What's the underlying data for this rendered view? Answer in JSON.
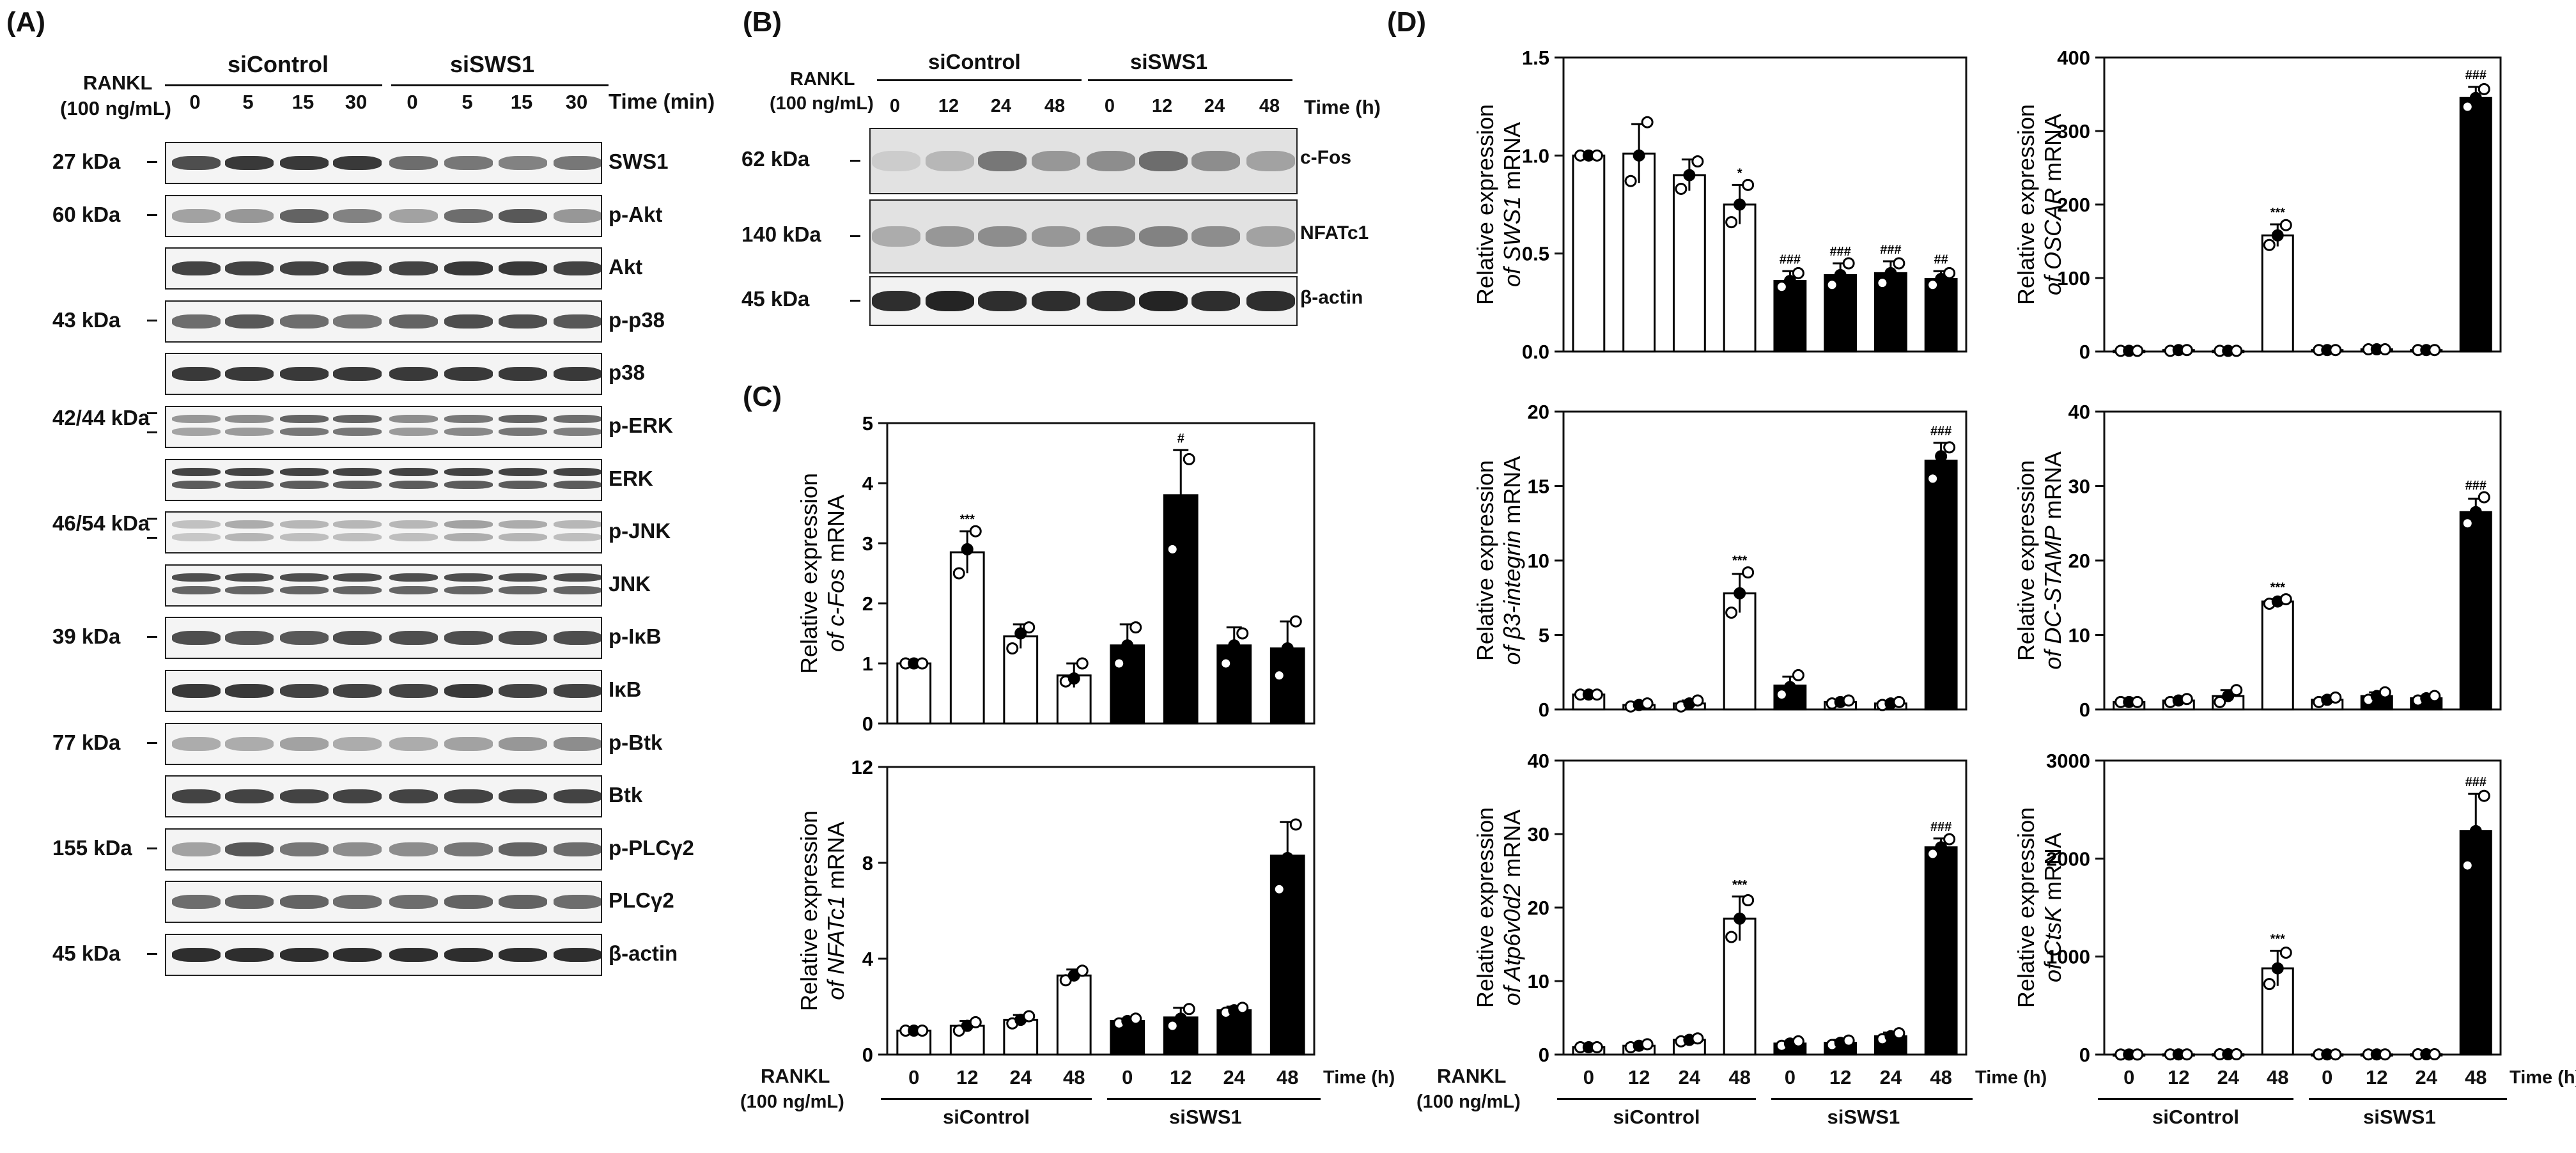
{
  "panel_A": {
    "letter": "(A)",
    "rankl_label_1": "RANKL",
    "rankl_label_2": "(100 ng/mL)",
    "groups": [
      "siControl",
      "siSWS1"
    ],
    "time_label": "Time (min)",
    "times": [
      "0",
      "5",
      "15",
      "30",
      "0",
      "5",
      "15",
      "30"
    ],
    "blots": [
      {
        "label": "SWS1",
        "kda": "27 kDa",
        "intensity": [
          0.75,
          0.85,
          0.85,
          0.85,
          0.6,
          0.55,
          0.5,
          0.55
        ],
        "double": false
      },
      {
        "label": "p-Akt",
        "kda": "60 kDa",
        "intensity": [
          0.35,
          0.4,
          0.65,
          0.5,
          0.35,
          0.6,
          0.7,
          0.4
        ],
        "double": false
      },
      {
        "label": "Akt",
        "kda": "",
        "intensity": [
          0.8,
          0.8,
          0.8,
          0.8,
          0.8,
          0.85,
          0.85,
          0.8
        ],
        "double": false
      },
      {
        "label": "p-p38",
        "kda": "43 kDa",
        "intensity": [
          0.6,
          0.7,
          0.6,
          0.55,
          0.65,
          0.75,
          0.75,
          0.7
        ],
        "double": false
      },
      {
        "label": "p38",
        "kda": "",
        "intensity": [
          0.85,
          0.85,
          0.85,
          0.85,
          0.85,
          0.85,
          0.85,
          0.85
        ],
        "double": false
      },
      {
        "label": "p-ERK",
        "kda": "42/44 kDa",
        "intensity": [
          0.4,
          0.45,
          0.65,
          0.65,
          0.45,
          0.55,
          0.65,
          0.6
        ],
        "double": true
      },
      {
        "label": "ERK",
        "kda": "",
        "intensity": [
          0.8,
          0.8,
          0.8,
          0.8,
          0.8,
          0.8,
          0.8,
          0.8
        ],
        "double": true
      },
      {
        "label": "p-JNK",
        "kda": "46/54 kDa",
        "intensity": [
          0.2,
          0.3,
          0.25,
          0.25,
          0.25,
          0.35,
          0.3,
          0.25
        ],
        "double": true
      },
      {
        "label": "JNK",
        "kda": "",
        "intensity": [
          0.75,
          0.75,
          0.75,
          0.75,
          0.75,
          0.75,
          0.75,
          0.75
        ],
        "double": true
      },
      {
        "label": "p-IκB",
        "kda": "39 kDa",
        "intensity": [
          0.75,
          0.7,
          0.7,
          0.75,
          0.75,
          0.75,
          0.75,
          0.75
        ],
        "double": false
      },
      {
        "label": "IκB",
        "kda": "",
        "intensity": [
          0.85,
          0.85,
          0.8,
          0.8,
          0.8,
          0.85,
          0.8,
          0.8
        ],
        "double": false
      },
      {
        "label": "p-Btk",
        "kda": "77 kDa",
        "intensity": [
          0.3,
          0.3,
          0.35,
          0.3,
          0.3,
          0.35,
          0.4,
          0.45
        ],
        "double": false
      },
      {
        "label": "Btk",
        "kda": "",
        "intensity": [
          0.8,
          0.8,
          0.8,
          0.8,
          0.8,
          0.8,
          0.8,
          0.8
        ],
        "double": false
      },
      {
        "label": "p-PLCγ2",
        "kda": "155 kDa",
        "intensity": [
          0.35,
          0.7,
          0.55,
          0.45,
          0.45,
          0.55,
          0.65,
          0.6
        ],
        "double": false
      },
      {
        "label": "PLCγ2",
        "kda": "",
        "intensity": [
          0.6,
          0.65,
          0.65,
          0.6,
          0.6,
          0.65,
          0.65,
          0.6
        ],
        "double": false
      },
      {
        "label": "β-actin",
        "kda": "45 kDa",
        "intensity": [
          0.9,
          0.9,
          0.9,
          0.9,
          0.9,
          0.9,
          0.9,
          0.9
        ],
        "double": false
      }
    ]
  },
  "panel_B": {
    "letter": "(B)",
    "rankl_label_1": "RANKL",
    "rankl_label_2": "(100 ng/mL)",
    "groups": [
      "siControl",
      "siSWS1"
    ],
    "time_label": "Time (h)",
    "times": [
      "0",
      "12",
      "24",
      "48",
      "0",
      "12",
      "24",
      "48"
    ],
    "blots": [
      {
        "label": "c-Fos",
        "kda": "62 kDa",
        "intensity": [
          0.15,
          0.25,
          0.55,
          0.4,
          0.45,
          0.6,
          0.45,
          0.35
        ]
      },
      {
        "label": "NFATc1",
        "kda": "140 kDa",
        "intensity": [
          0.3,
          0.4,
          0.45,
          0.4,
          0.45,
          0.5,
          0.45,
          0.35
        ]
      },
      {
        "label": "β-actin",
        "kda": "45 kDa",
        "intensity": [
          0.9,
          0.95,
          0.9,
          0.9,
          0.9,
          0.95,
          0.9,
          0.9
        ]
      }
    ]
  },
  "panel_C": {
    "letter": "(C)"
  },
  "panel_D": {
    "letter": "(D)"
  },
  "axis_shared": {
    "rankl": "RANKL",
    "rankl_conc": "(100 ng/mL)",
    "time_label": "Time (h)",
    "groups": [
      "siControl",
      "siSWS1"
    ],
    "categories": [
      "0",
      "12",
      "24",
      "48",
      "0",
      "12",
      "24",
      "48"
    ]
  },
  "chart_data": [
    {
      "id": "c_fos",
      "type": "bar",
      "ylabel_prefix": "Relative expression",
      "ylabel_gene": "of c-Fos",
      "ylabel_suffix": " mRNA",
      "categories": [
        "0",
        "12",
        "24",
        "48",
        "0",
        "12",
        "24",
        "48"
      ],
      "values": [
        1.0,
        2.85,
        1.45,
        0.8,
        1.3,
        3.8,
        1.3,
        1.25
      ],
      "errors": [
        0.02,
        0.35,
        0.2,
        0.2,
        0.35,
        0.75,
        0.3,
        0.45
      ],
      "points": [
        [
          1,
          1,
          1
        ],
        [
          2.5,
          2.9,
          3.2
        ],
        [
          1.25,
          1.5,
          1.6
        ],
        [
          0.7,
          0.75,
          1.0
        ],
        [
          1.0,
          1.3,
          1.6
        ],
        [
          2.9,
          3.7,
          4.4
        ],
        [
          1.0,
          1.3,
          1.5
        ],
        [
          0.8,
          1.25,
          1.7
        ]
      ],
      "group": [
        "white",
        "white",
        "white",
        "white",
        "black",
        "black",
        "black",
        "black"
      ],
      "annotations": [
        "",
        "***",
        "",
        "",
        "",
        "#",
        "",
        ""
      ],
      "ylim": [
        0,
        5
      ],
      "yticks": [
        0,
        1,
        2,
        3,
        4,
        5
      ],
      "ytick_labels": [
        "0",
        "1",
        "2",
        "3",
        "4",
        "5"
      ]
    },
    {
      "id": "nfatc1",
      "type": "bar",
      "ylabel_prefix": "Relative expression",
      "ylabel_gene": "of NFATc1",
      "ylabel_suffix": " mRNA",
      "categories": [
        "0",
        "12",
        "24",
        "48",
        "0",
        "12",
        "24",
        "48"
      ],
      "values": [
        1.0,
        1.2,
        1.45,
        3.3,
        1.4,
        1.55,
        1.85,
        8.3
      ],
      "errors": [
        0.05,
        0.2,
        0.2,
        0.25,
        0.1,
        0.4,
        0.15,
        1.4
      ],
      "points": [
        [
          1,
          1,
          1
        ],
        [
          1.0,
          1.2,
          1.35
        ],
        [
          1.3,
          1.45,
          1.6
        ],
        [
          3.1,
          3.3,
          3.5
        ],
        [
          1.3,
          1.4,
          1.5
        ],
        [
          1.2,
          1.5,
          1.9
        ],
        [
          1.75,
          1.85,
          1.95
        ],
        [
          6.9,
          8.2,
          9.6
        ]
      ],
      "group": [
        "white",
        "white",
        "white",
        "white",
        "black",
        "black",
        "black",
        "black"
      ],
      "annotations": [
        "",
        "",
        "",
        "",
        "",
        "",
        "",
        ""
      ],
      "ylim": [
        0,
        12
      ],
      "yticks": [
        0,
        4,
        8,
        12
      ],
      "ytick_labels": [
        "0",
        "4",
        "8",
        "12"
      ]
    },
    {
      "id": "sws1",
      "type": "bar",
      "ylabel_prefix": "Relative expression",
      "ylabel_gene": "of SWS1",
      "ylabel_suffix": " mRNA",
      "categories": [
        "0",
        "12",
        "24",
        "48",
        "0",
        "12",
        "24",
        "48"
      ],
      "values": [
        1.0,
        1.01,
        0.9,
        0.75,
        0.36,
        0.39,
        0.4,
        0.37
      ],
      "errors": [
        0.01,
        0.15,
        0.08,
        0.1,
        0.05,
        0.06,
        0.06,
        0.04
      ],
      "points": [
        [
          1,
          1,
          1
        ],
        [
          0.87,
          1.0,
          1.17
        ],
        [
          0.83,
          0.9,
          0.97
        ],
        [
          0.66,
          0.75,
          0.85
        ],
        [
          0.33,
          0.36,
          0.4
        ],
        [
          0.34,
          0.39,
          0.45
        ],
        [
          0.35,
          0.4,
          0.45
        ],
        [
          0.34,
          0.37,
          0.4
        ]
      ],
      "group": [
        "white",
        "white",
        "white",
        "white",
        "black",
        "black",
        "black",
        "black"
      ],
      "annotations": [
        "",
        "",
        "",
        "*",
        "###",
        "###",
        "###",
        "##"
      ],
      "ylim": [
        0,
        1.5
      ],
      "yticks": [
        0,
        0.5,
        1.0,
        1.5
      ],
      "ytick_labels": [
        "0.0",
        "0.5",
        "1.0",
        "1.5"
      ]
    },
    {
      "id": "oscar",
      "type": "bar",
      "ylabel_prefix": "Relative expression",
      "ylabel_gene": "of OSCAR",
      "ylabel_suffix": " mRNA",
      "categories": [
        "0",
        "12",
        "24",
        "48",
        "0",
        "12",
        "24",
        "48"
      ],
      "values": [
        1,
        2,
        1,
        158,
        2,
        3,
        2,
        345
      ],
      "errors": [
        0.5,
        0.5,
        0.5,
        15,
        0.5,
        0.5,
        0.5,
        15
      ],
      "points": [
        [
          1,
          1,
          1
        ],
        [
          1,
          2,
          2
        ],
        [
          1,
          1,
          1
        ],
        [
          145,
          158,
          172
        ],
        [
          2,
          2,
          2
        ],
        [
          3,
          3,
          3
        ],
        [
          2,
          2,
          2
        ],
        [
          333,
          345,
          357
        ]
      ],
      "group": [
        "white",
        "white",
        "white",
        "white",
        "white",
        "white",
        "white",
        "black"
      ],
      "annotations": [
        "",
        "",
        "",
        "***",
        "",
        "",
        "",
        "###"
      ],
      "ylim": [
        0,
        400
      ],
      "yticks": [
        0,
        100,
        200,
        300,
        400
      ],
      "ytick_labels": [
        "0",
        "100",
        "200",
        "300",
        "400"
      ]
    },
    {
      "id": "b3_integrin",
      "type": "bar",
      "ylabel_prefix": "Relative expression",
      "ylabel_gene": "of β3-integrin",
      "ylabel_suffix": " mRNA",
      "categories": [
        "0",
        "12",
        "24",
        "48",
        "0",
        "12",
        "24",
        "48"
      ],
      "values": [
        1.0,
        0.3,
        0.4,
        7.8,
        1.6,
        0.5,
        0.4,
        16.7
      ],
      "errors": [
        0.1,
        0.1,
        0.2,
        1.3,
        0.6,
        0.1,
        0.1,
        1.2
      ],
      "points": [
        [
          1,
          1,
          1
        ],
        [
          0.2,
          0.3,
          0.4
        ],
        [
          0.2,
          0.4,
          0.6
        ],
        [
          6.5,
          7.8,
          9.2
        ],
        [
          1.0,
          1.5,
          2.3
        ],
        [
          0.4,
          0.5,
          0.6
        ],
        [
          0.3,
          0.4,
          0.5
        ],
        [
          15.5,
          17.0,
          17.6
        ]
      ],
      "group": [
        "white",
        "white",
        "white",
        "white",
        "black",
        "white",
        "white",
        "black"
      ],
      "annotations": [
        "",
        "",
        "",
        "***",
        "",
        "",
        "",
        "###"
      ],
      "ylim": [
        0,
        20
      ],
      "yticks": [
        0,
        5,
        10,
        15,
        20
      ],
      "ytick_labels": [
        "0",
        "5",
        "10",
        "15",
        "20"
      ]
    },
    {
      "id": "dc_stamp",
      "type": "bar",
      "ylabel_prefix": "Relative expression",
      "ylabel_gene": "of DC-STAMP",
      "ylabel_suffix": " mRNA",
      "categories": [
        "0",
        "12",
        "24",
        "48",
        "0",
        "12",
        "24",
        "48"
      ],
      "values": [
        1.0,
        1.2,
        1.8,
        14.5,
        1.3,
        1.8,
        1.5,
        26.5
      ],
      "errors": [
        0.1,
        0.2,
        0.8,
        0.3,
        0.3,
        0.5,
        0.3,
        1.8
      ],
      "points": [
        [
          1,
          1,
          1
        ],
        [
          1.0,
          1.2,
          1.4
        ],
        [
          1.0,
          1.8,
          2.6
        ],
        [
          14.2,
          14.5,
          14.8
        ],
        [
          1.0,
          1.3,
          1.6
        ],
        [
          1.3,
          1.8,
          2.3
        ],
        [
          1.2,
          1.5,
          1.8
        ],
        [
          25.0,
          26.5,
          28.5
        ]
      ],
      "group": [
        "white",
        "white",
        "white",
        "white",
        "white",
        "black",
        "black",
        "black"
      ],
      "annotations": [
        "",
        "",
        "",
        "***",
        "",
        "",
        "",
        "###"
      ],
      "ylim": [
        0,
        40
      ],
      "yticks": [
        0,
        10,
        20,
        30,
        40
      ],
      "ytick_labels": [
        "0",
        "10",
        "20",
        "30",
        "40"
      ]
    },
    {
      "id": "atp6v0d2",
      "type": "bar",
      "ylabel_prefix": "Relative expression",
      "ylabel_gene": "of Atp6v0d2",
      "ylabel_suffix": " mRNA",
      "categories": [
        "0",
        "12",
        "24",
        "48",
        "0",
        "12",
        "24",
        "48"
      ],
      "values": [
        1.0,
        1.2,
        2.0,
        18.5,
        1.5,
        1.6,
        2.5,
        28.2
      ],
      "errors": [
        0.1,
        0.2,
        0.3,
        3.0,
        0.3,
        0.4,
        0.5,
        1.2
      ],
      "points": [
        [
          1,
          1,
          1
        ],
        [
          1.0,
          1.2,
          1.4
        ],
        [
          1.8,
          2.0,
          2.2
        ],
        [
          16.0,
          18.5,
          21.0
        ],
        [
          1.2,
          1.5,
          1.8
        ],
        [
          1.3,
          1.6,
          1.9
        ],
        [
          2.1,
          2.5,
          2.9
        ],
        [
          27.3,
          28.2,
          29.3
        ]
      ],
      "group": [
        "white",
        "white",
        "white",
        "white",
        "black",
        "black",
        "black",
        "black"
      ],
      "annotations": [
        "",
        "",
        "",
        "***",
        "",
        "",
        "",
        "###"
      ],
      "ylim": [
        0,
        40
      ],
      "yticks": [
        0,
        10,
        20,
        30,
        40
      ],
      "ytick_labels": [
        "0",
        "10",
        "20",
        "30",
        "40"
      ]
    },
    {
      "id": "ctsk",
      "type": "bar",
      "ylabel_prefix": "Relative expression",
      "ylabel_gene": "of CtsK",
      "ylabel_suffix": " mRNA",
      "categories": [
        "0",
        "12",
        "24",
        "48",
        "0",
        "12",
        "24",
        "48"
      ],
      "values": [
        1,
        2,
        3,
        880,
        2,
        2,
        3,
        2280
      ],
      "errors": [
        1,
        1,
        1,
        180,
        1,
        1,
        1,
        380
      ],
      "points": [
        [
          1,
          1,
          1
        ],
        [
          2,
          2,
          2
        ],
        [
          3,
          3,
          3
        ],
        [
          720,
          880,
          1040
        ],
        [
          2,
          2,
          2
        ],
        [
          2,
          2,
          2
        ],
        [
          3,
          3,
          3
        ],
        [
          1930,
          2280,
          2640
        ]
      ],
      "group": [
        "white",
        "white",
        "white",
        "white",
        "white",
        "white",
        "white",
        "black"
      ],
      "annotations": [
        "",
        "",
        "",
        "***",
        "",
        "",
        "",
        "###"
      ],
      "ylim": [
        0,
        3000
      ],
      "yticks": [
        0,
        1000,
        2000,
        3000
      ],
      "ytick_labels": [
        "0",
        "1000",
        "2000",
        "3000"
      ]
    }
  ]
}
